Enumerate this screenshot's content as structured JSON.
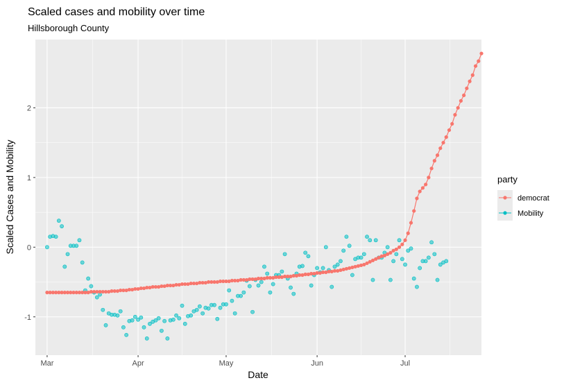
{
  "chart_data": {
    "type": "scatter",
    "title": "Scaled cases and mobility over time",
    "subtitle": "Hillsborough County",
    "xlabel": "Date",
    "ylabel": "Scaled Cases and Mobility",
    "x_range": [
      "2020-02-26",
      "2020-07-27"
    ],
    "y_range": [
      -1.55,
      2.98
    ],
    "x_ticks": [
      {
        "date": "2020-03-01",
        "label": "Mar"
      },
      {
        "date": "2020-04-01",
        "label": "Apr"
      },
      {
        "date": "2020-05-01",
        "label": "May"
      },
      {
        "date": "2020-06-01",
        "label": "Jun"
      },
      {
        "date": "2020-07-01",
        "label": "Jul"
      }
    ],
    "y_ticks": [
      -1,
      0,
      1,
      2
    ],
    "grid": true,
    "legend": {
      "title": "party",
      "position": "right"
    },
    "series": [
      {
        "name": "democrat",
        "color": "#F8766D",
        "style": "line+points",
        "start_date": "2020-03-01",
        "values": [
          -0.65,
          -0.65,
          -0.65,
          -0.65,
          -0.65,
          -0.65,
          -0.65,
          -0.65,
          -0.65,
          -0.65,
          -0.65,
          -0.65,
          -0.65,
          -0.65,
          -0.65,
          -0.64,
          -0.64,
          -0.64,
          -0.64,
          -0.64,
          -0.64,
          -0.64,
          -0.63,
          -0.63,
          -0.63,
          -0.62,
          -0.62,
          -0.62,
          -0.61,
          -0.61,
          -0.6,
          -0.6,
          -0.59,
          -0.59,
          -0.58,
          -0.58,
          -0.57,
          -0.57,
          -0.57,
          -0.56,
          -0.56,
          -0.55,
          -0.55,
          -0.55,
          -0.54,
          -0.54,
          -0.53,
          -0.53,
          -0.53,
          -0.52,
          -0.52,
          -0.52,
          -0.51,
          -0.51,
          -0.51,
          -0.5,
          -0.5,
          -0.5,
          -0.5,
          -0.49,
          -0.49,
          -0.49,
          -0.49,
          -0.48,
          -0.48,
          -0.48,
          -0.47,
          -0.47,
          -0.47,
          -0.46,
          -0.46,
          -0.46,
          -0.45,
          -0.45,
          -0.45,
          -0.44,
          -0.44,
          -0.44,
          -0.43,
          -0.43,
          -0.43,
          -0.42,
          -0.42,
          -0.42,
          -0.41,
          -0.41,
          -0.4,
          -0.4,
          -0.39,
          -0.39,
          -0.38,
          -0.38,
          -0.37,
          -0.37,
          -0.36,
          -0.36,
          -0.35,
          -0.35,
          -0.34,
          -0.34,
          -0.33,
          -0.32,
          -0.31,
          -0.3,
          -0.29,
          -0.28,
          -0.27,
          -0.26,
          -0.25,
          -0.23,
          -0.21,
          -0.19,
          -0.17,
          -0.15,
          -0.13,
          -0.12,
          -0.1,
          -0.08,
          -0.05,
          -0.03,
          0.0,
          0.04,
          0.1,
          0.2,
          0.35,
          0.52,
          0.7,
          0.8,
          0.85,
          0.9,
          1.0,
          1.13,
          1.24,
          1.32,
          1.42,
          1.5,
          1.58,
          1.68,
          1.77,
          1.9,
          2.0,
          2.1,
          2.18,
          2.28,
          2.38,
          2.47,
          2.6,
          2.67,
          2.78
        ]
      },
      {
        "name": "Mobility",
        "color": "#00BFC4",
        "style": "points",
        "points": [
          [
            "2020-03-01",
            0.0
          ],
          [
            "2020-03-02",
            0.15
          ],
          [
            "2020-03-03",
            0.16
          ],
          [
            "2020-03-04",
            0.15
          ],
          [
            "2020-03-05",
            0.38
          ],
          [
            "2020-03-06",
            0.3
          ],
          [
            "2020-03-07",
            -0.28
          ],
          [
            "2020-03-08",
            -0.1
          ],
          [
            "2020-03-09",
            0.02
          ],
          [
            "2020-03-10",
            0.02
          ],
          [
            "2020-03-11",
            0.02
          ],
          [
            "2020-03-12",
            0.1
          ],
          [
            "2020-03-13",
            -0.22
          ],
          [
            "2020-03-14",
            -0.62
          ],
          [
            "2020-03-15",
            -0.45
          ],
          [
            "2020-03-16",
            -0.56
          ],
          [
            "2020-03-17",
            -0.65
          ],
          [
            "2020-03-18",
            -0.72
          ],
          [
            "2020-03-19",
            -0.68
          ],
          [
            "2020-03-20",
            -0.9
          ],
          [
            "2020-03-21",
            -1.12
          ],
          [
            "2020-03-22",
            -0.95
          ],
          [
            "2020-03-23",
            -0.97
          ],
          [
            "2020-03-24",
            -0.97
          ],
          [
            "2020-03-25",
            -0.98
          ],
          [
            "2020-03-26",
            -0.92
          ],
          [
            "2020-03-27",
            -1.15
          ],
          [
            "2020-03-28",
            -1.26
          ],
          [
            "2020-03-29",
            -1.06
          ],
          [
            "2020-03-30",
            -1.05
          ],
          [
            "2020-03-31",
            -1.0
          ],
          [
            "2020-04-01",
            -1.04
          ],
          [
            "2020-04-02",
            -1.01
          ],
          [
            "2020-04-03",
            -1.15
          ],
          [
            "2020-04-04",
            -1.31
          ],
          [
            "2020-04-05",
            -1.1
          ],
          [
            "2020-04-06",
            -1.07
          ],
          [
            "2020-04-07",
            -1.05
          ],
          [
            "2020-04-08",
            -1.02
          ],
          [
            "2020-04-09",
            -1.2
          ],
          [
            "2020-04-10",
            -1.06
          ],
          [
            "2020-04-11",
            -1.31
          ],
          [
            "2020-04-12",
            -1.05
          ],
          [
            "2020-04-13",
            -1.04
          ],
          [
            "2020-04-14",
            -0.98
          ],
          [
            "2020-04-15",
            -1.02
          ],
          [
            "2020-04-16",
            -0.84
          ],
          [
            "2020-04-17",
            -1.1
          ],
          [
            "2020-04-18",
            -0.99
          ],
          [
            "2020-04-19",
            -0.98
          ],
          [
            "2020-04-20",
            -0.92
          ],
          [
            "2020-04-21",
            -0.9
          ],
          [
            "2020-04-22",
            -0.85
          ],
          [
            "2020-04-23",
            -0.95
          ],
          [
            "2020-04-24",
            -0.87
          ],
          [
            "2020-04-25",
            -0.88
          ],
          [
            "2020-04-26",
            -0.83
          ],
          [
            "2020-04-27",
            -0.83
          ],
          [
            "2020-04-28",
            -1.03
          ],
          [
            "2020-04-29",
            -0.87
          ],
          [
            "2020-04-30",
            -0.82
          ],
          [
            "2020-05-01",
            -0.82
          ],
          [
            "2020-05-02",
            -0.62
          ],
          [
            "2020-05-03",
            -0.77
          ],
          [
            "2020-05-04",
            -0.95
          ],
          [
            "2020-05-05",
            -0.7
          ],
          [
            "2020-05-06",
            -0.7
          ],
          [
            "2020-05-07",
            -0.65
          ],
          [
            "2020-05-08",
            -0.48
          ],
          [
            "2020-05-09",
            -0.56
          ],
          [
            "2020-05-10",
            -0.93
          ],
          [
            "2020-05-11",
            -0.47
          ],
          [
            "2020-05-12",
            -0.55
          ],
          [
            "2020-05-13",
            -0.5
          ],
          [
            "2020-05-14",
            -0.28
          ],
          [
            "2020-05-15",
            -0.38
          ],
          [
            "2020-05-16",
            -0.65
          ],
          [
            "2020-05-17",
            -0.53
          ],
          [
            "2020-05-18",
            -0.4
          ],
          [
            "2020-05-19",
            -0.4
          ],
          [
            "2020-05-20",
            -0.35
          ],
          [
            "2020-05-21",
            -0.1
          ],
          [
            "2020-05-22",
            -0.45
          ],
          [
            "2020-05-23",
            -0.58
          ],
          [
            "2020-05-24",
            -0.67
          ],
          [
            "2020-05-25",
            -0.38
          ],
          [
            "2020-05-26",
            -0.28
          ],
          [
            "2020-05-27",
            -0.27
          ],
          [
            "2020-05-28",
            -0.08
          ],
          [
            "2020-05-29",
            -0.13
          ],
          [
            "2020-05-30",
            -0.55
          ],
          [
            "2020-05-31",
            -0.4
          ],
          [
            "2020-06-01",
            -0.3
          ],
          [
            "2020-06-02",
            -0.36
          ],
          [
            "2020-06-03",
            -0.3
          ],
          [
            "2020-06-04",
            0.0
          ],
          [
            "2020-06-05",
            -0.33
          ],
          [
            "2020-06-06",
            -0.57
          ],
          [
            "2020-06-07",
            -0.28
          ],
          [
            "2020-06-08",
            -0.25
          ],
          [
            "2020-06-09",
            -0.2
          ],
          [
            "2020-06-10",
            -0.05
          ],
          [
            "2020-06-11",
            0.15
          ],
          [
            "2020-06-12",
            0.02
          ],
          [
            "2020-06-13",
            -0.4
          ],
          [
            "2020-06-14",
            -0.17
          ],
          [
            "2020-06-15",
            -0.15
          ],
          [
            "2020-06-16",
            -0.15
          ],
          [
            "2020-06-17",
            -0.1
          ],
          [
            "2020-06-18",
            0.15
          ],
          [
            "2020-06-19",
            0.1
          ],
          [
            "2020-06-20",
            -0.47
          ],
          [
            "2020-06-21",
            0.1
          ],
          [
            "2020-06-22",
            -0.15
          ],
          [
            "2020-06-23",
            -0.15
          ],
          [
            "2020-06-24",
            -0.08
          ],
          [
            "2020-06-25",
            0.0
          ],
          [
            "2020-06-26",
            -0.47
          ],
          [
            "2020-06-27",
            -0.2
          ],
          [
            "2020-06-28",
            -0.1
          ],
          [
            "2020-06-29",
            0.1
          ],
          [
            "2020-06-30",
            -0.17
          ],
          [
            "2020-07-01",
            -0.25
          ],
          [
            "2020-07-02",
            -0.05
          ],
          [
            "2020-07-03",
            -0.02
          ],
          [
            "2020-07-04",
            -0.45
          ],
          [
            "2020-07-05",
            -0.57
          ],
          [
            "2020-07-06",
            -0.3
          ],
          [
            "2020-07-07",
            -0.2
          ],
          [
            "2020-07-08",
            -0.2
          ],
          [
            "2020-07-09",
            -0.15
          ],
          [
            "2020-07-10",
            0.07
          ],
          [
            "2020-07-11",
            -0.1
          ],
          [
            "2020-07-12",
            -0.47
          ],
          [
            "2020-07-13",
            -0.25
          ],
          [
            "2020-07-14",
            -0.22
          ],
          [
            "2020-07-15",
            -0.2
          ]
        ]
      }
    ]
  }
}
